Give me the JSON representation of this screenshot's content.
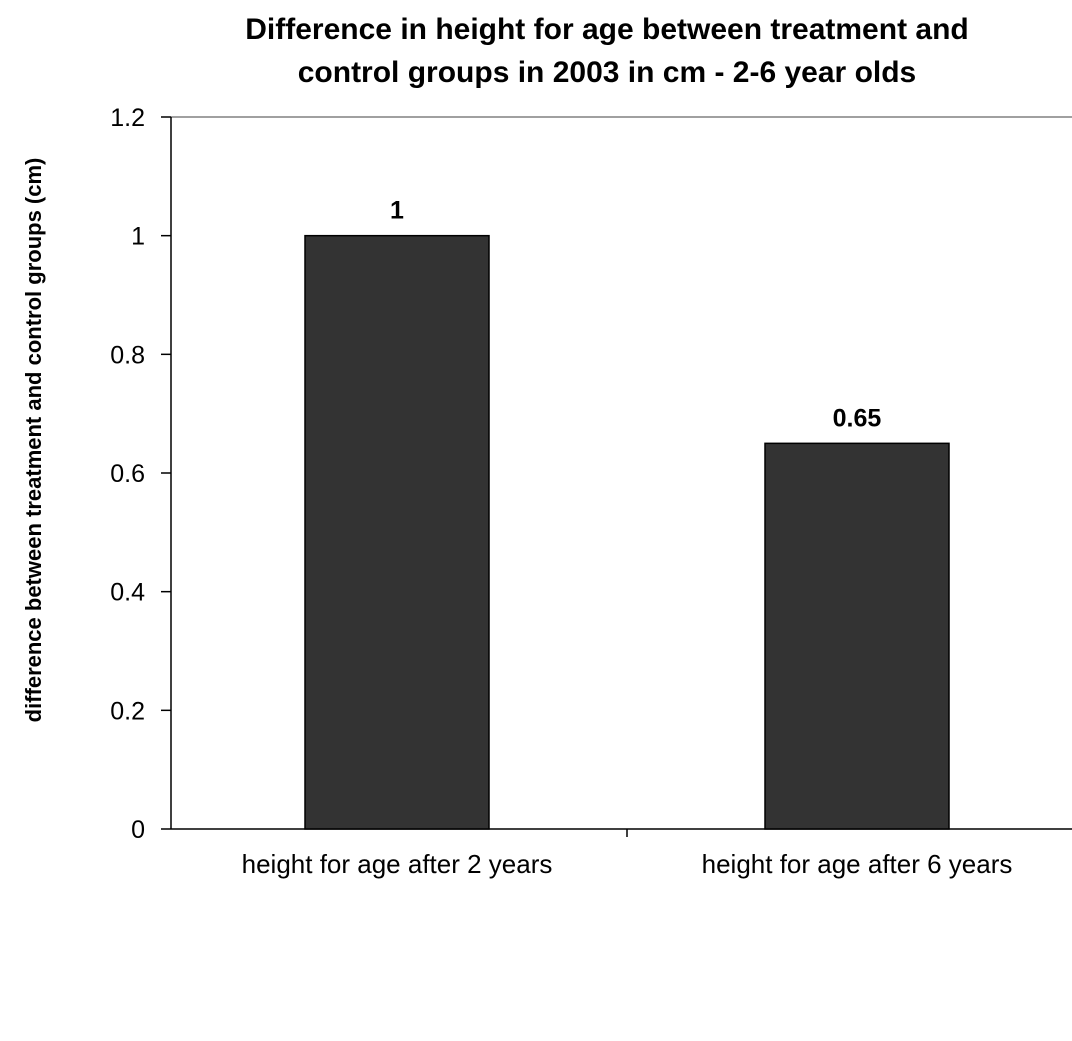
{
  "chart_data": {
    "type": "bar",
    "title_lines": [
      "Difference in height for age between treatment and",
      "control groups in 2003 in cm - 2-6 year olds"
    ],
    "ylabel": "difference between treatment and control groups (cm)",
    "xlabel": "",
    "categories": [
      "height for age after 2 years",
      "height for age after 6 years"
    ],
    "values": [
      1,
      0.65
    ],
    "data_labels": [
      "1",
      "0.65"
    ],
    "ylim": [
      0,
      1.2
    ],
    "yticks": [
      "0",
      "0.2",
      "0.4",
      "0.6",
      "0.8",
      "1",
      "1.2"
    ],
    "grid": false,
    "legend": "none",
    "colors": {
      "bar_fill": "#333333",
      "bar_stroke": "#000000",
      "axis": "#000000",
      "frame_top": "#808080",
      "background": "#ffffff"
    }
  }
}
